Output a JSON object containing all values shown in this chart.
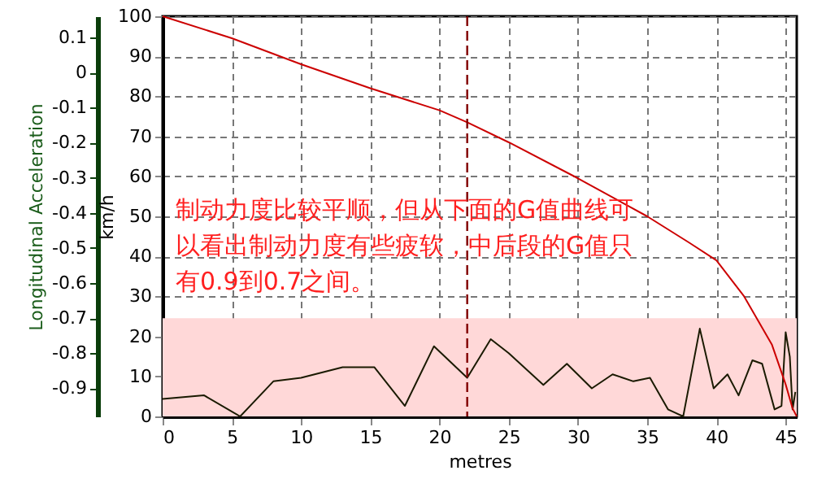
{
  "chart_data": {
    "type": "line",
    "xlabel": "metres",
    "ylabel": "km/h",
    "y2label": "Longitudinal Acceleration",
    "series": [
      {
        "color": "#cc0000",
        "x": [
          0,
          5,
          10,
          15,
          20,
          22,
          25,
          30,
          35,
          38,
          40,
          42,
          44,
          45,
          45.5,
          45.8
        ],
        "values": [
          100,
          94.5,
          88,
          82,
          76.5,
          73.5,
          68.5,
          59.5,
          50,
          43.5,
          39,
          30,
          18,
          8,
          2,
          0
        ]
      },
      {
        "color": "#1a1a00",
        "axis": "y2",
        "x": [
          0,
          3,
          5.6,
          8,
          10,
          13,
          15.3,
          17.5,
          19.6,
          22,
          23.7,
          25,
          27.5,
          29.2,
          31,
          32.5,
          34,
          35.2,
          36.5,
          37.6,
          38.8,
          39.8,
          40.8,
          41.6,
          42.6,
          43.3,
          44.2,
          44.7,
          45,
          45.3,
          45.5,
          45.7
        ],
        "values": [
          -0.93,
          -0.92,
          -0.98,
          -0.88,
          -0.87,
          -0.84,
          -0.84,
          -0.95,
          -0.78,
          -0.87,
          -0.76,
          -0.8,
          -0.89,
          -0.83,
          -0.9,
          -0.86,
          -0.88,
          -0.87,
          -0.96,
          -0.98,
          -0.73,
          -0.9,
          -0.86,
          -0.92,
          -0.82,
          -0.83,
          -0.96,
          -0.95,
          -0.74,
          -0.81,
          -0.96,
          -0.91
        ]
      }
    ],
    "xlim": [
      0,
      45.8
    ],
    "xticks": [
      0,
      5,
      10,
      15,
      20,
      25,
      30,
      35,
      40,
      45
    ],
    "ylim": [
      0,
      100
    ],
    "yticks": [
      0,
      10,
      20,
      30,
      40,
      50,
      60,
      70,
      80,
      90,
      100
    ],
    "y2lim": [
      -0.98,
      0.16
    ],
    "y2ticks": [
      -0.9,
      -0.8,
      -0.7,
      -0.6,
      -0.5,
      -0.4,
      -0.3,
      -0.2,
      -0.1,
      0,
      0.1
    ],
    "grid": true,
    "ref_lines": [
      {
        "axis": "x",
        "value": 22,
        "color": "#800000",
        "line_style": "dashed"
      }
    ],
    "bands": [
      {
        "axis": "y2",
        "from": -0.98,
        "to": -0.7,
        "color": "#ffd8d8"
      }
    ],
    "annotations": [
      "制动力度比较平顺，但从下面的G值曲线可以看出制动力度有些疲软，中后段的G值只有0.9到0.7之间。"
    ]
  }
}
